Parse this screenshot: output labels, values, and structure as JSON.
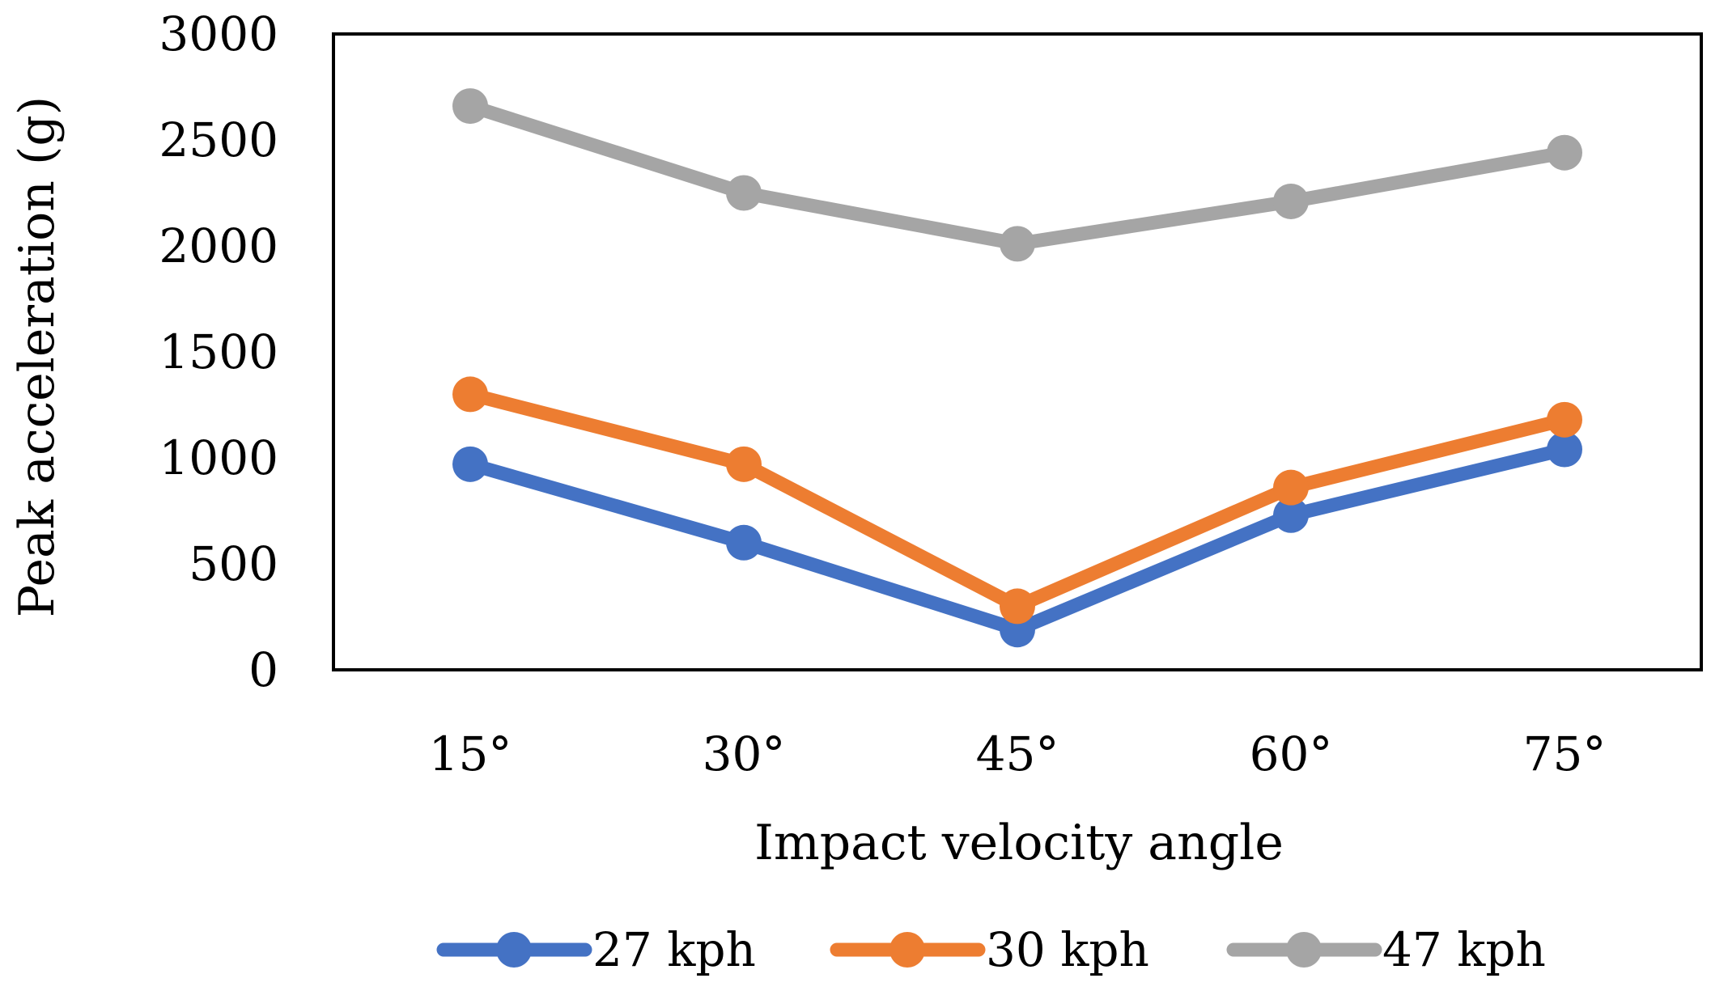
{
  "chart_data": {
    "type": "line",
    "title": "",
    "xlabel": "Impact velocity angle",
    "ylabel": "Peak acceleration (g)",
    "categories": [
      "15°",
      "30°",
      "45°",
      "60°",
      "75°"
    ],
    "ylim": [
      0,
      3000
    ],
    "yticks": [
      0,
      500,
      1000,
      1500,
      2000,
      2500,
      3000
    ],
    "grid": false,
    "legend_position": "bottom",
    "series": [
      {
        "name": "27 kph",
        "color": "#4472C4",
        "values": [
          970,
          600,
          190,
          730,
          1040
        ]
      },
      {
        "name": "30 kph",
        "color": "#ED7D31",
        "values": [
          1300,
          970,
          300,
          860,
          1180
        ]
      },
      {
        "name": "47 kph",
        "color": "#A5A5A5",
        "values": [
          2660,
          2250,
          2010,
          2210,
          2440
        ]
      }
    ]
  }
}
